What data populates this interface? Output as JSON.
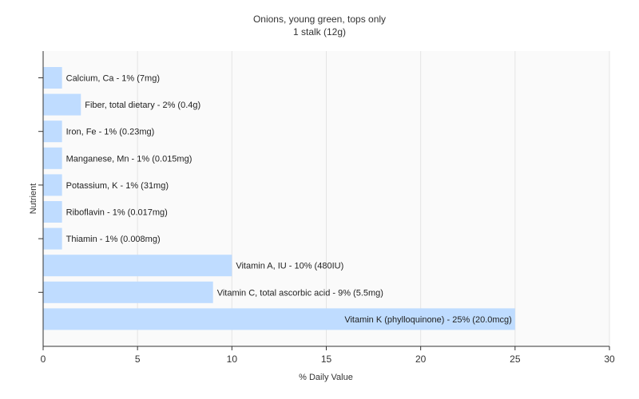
{
  "chart_data": {
    "type": "bar",
    "orientation": "horizontal",
    "title": "Onions, young green, tops only",
    "subtitle": "1 stalk (12g)",
    "xlabel": "% Daily Value",
    "ylabel": "Nutrient",
    "xlim": [
      0,
      30
    ],
    "xticks": [
      "0",
      "5",
      "10",
      "15",
      "20",
      "25",
      "30"
    ],
    "grid": true,
    "bar_color": "#bfdcff",
    "categories": [
      "Calcium, Ca",
      "Fiber, total dietary",
      "Iron, Fe",
      "Manganese, Mn",
      "Potassium, K",
      "Riboflavin",
      "Thiamin",
      "Vitamin A, IU",
      "Vitamin C, total ascorbic acid",
      "Vitamin K (phylloquinone)"
    ],
    "values": [
      1,
      2,
      1,
      1,
      1,
      1,
      1,
      10,
      9,
      25
    ],
    "data_labels": [
      "Calcium, Ca - 1% (7mg)",
      "Fiber, total dietary - 2% (0.4g)",
      "Iron, Fe - 1% (0.23mg)",
      "Manganese, Mn - 1% (0.015mg)",
      "Potassium, K - 1% (31mg)",
      "Riboflavin - 1% (0.017mg)",
      "Thiamin - 1% (0.008mg)",
      "Vitamin A, IU - 10% (480IU)",
      "Vitamin C, total ascorbic acid - 9% (5.5mg)",
      "Vitamin K (phylloquinone) - 25% (20.0mcg)"
    ]
  }
}
